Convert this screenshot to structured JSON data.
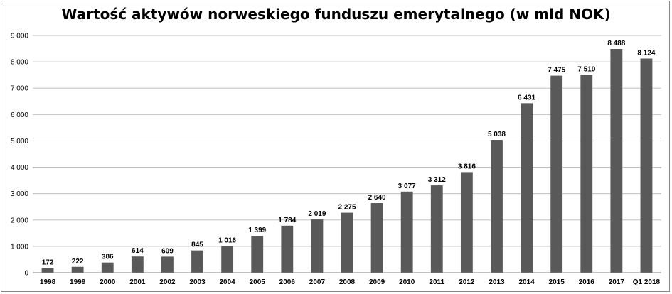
{
  "chart_data": {
    "type": "bar",
    "title": "Wartość aktywów norweskiego funduszu emerytalnego (w mld NOK)",
    "xlabel": "",
    "ylabel": "",
    "categories": [
      "1998",
      "1999",
      "2000",
      "2001",
      "2002",
      "2003",
      "2004",
      "2005",
      "2006",
      "2007",
      "2008",
      "2009",
      "2010",
      "2011",
      "2012",
      "2013",
      "2014",
      "2015",
      "2016",
      "2017",
      "Q1 2018"
    ],
    "values": [
      172,
      222,
      386,
      614,
      609,
      845,
      1016,
      1399,
      1784,
      2019,
      2275,
      2640,
      3077,
      3312,
      3816,
      5038,
      6431,
      7475,
      7510,
      8488,
      8124
    ],
    "value_labels": [
      "172",
      "222",
      "386",
      "614",
      "609",
      "845",
      "1 016",
      "1 399",
      "1 784",
      "2 019",
      "2 275",
      "2 640",
      "3 077",
      "3 312",
      "3 816",
      "5 038",
      "6 431",
      "7 475",
      "7 510",
      "8 488",
      "8 124"
    ],
    "ylim": [
      0,
      9000
    ],
    "yticks": [
      0,
      1000,
      2000,
      3000,
      4000,
      5000,
      6000,
      7000,
      8000,
      9000
    ],
    "ytick_labels": [
      "0",
      "1 000",
      "2 000",
      "3 000",
      "4 000",
      "5 000",
      "6 000",
      "7 000",
      "8 000",
      "9 000"
    ],
    "grid": true,
    "legend": "none",
    "bar_color": "#595959",
    "grid_color": "#c0c0c0"
  }
}
